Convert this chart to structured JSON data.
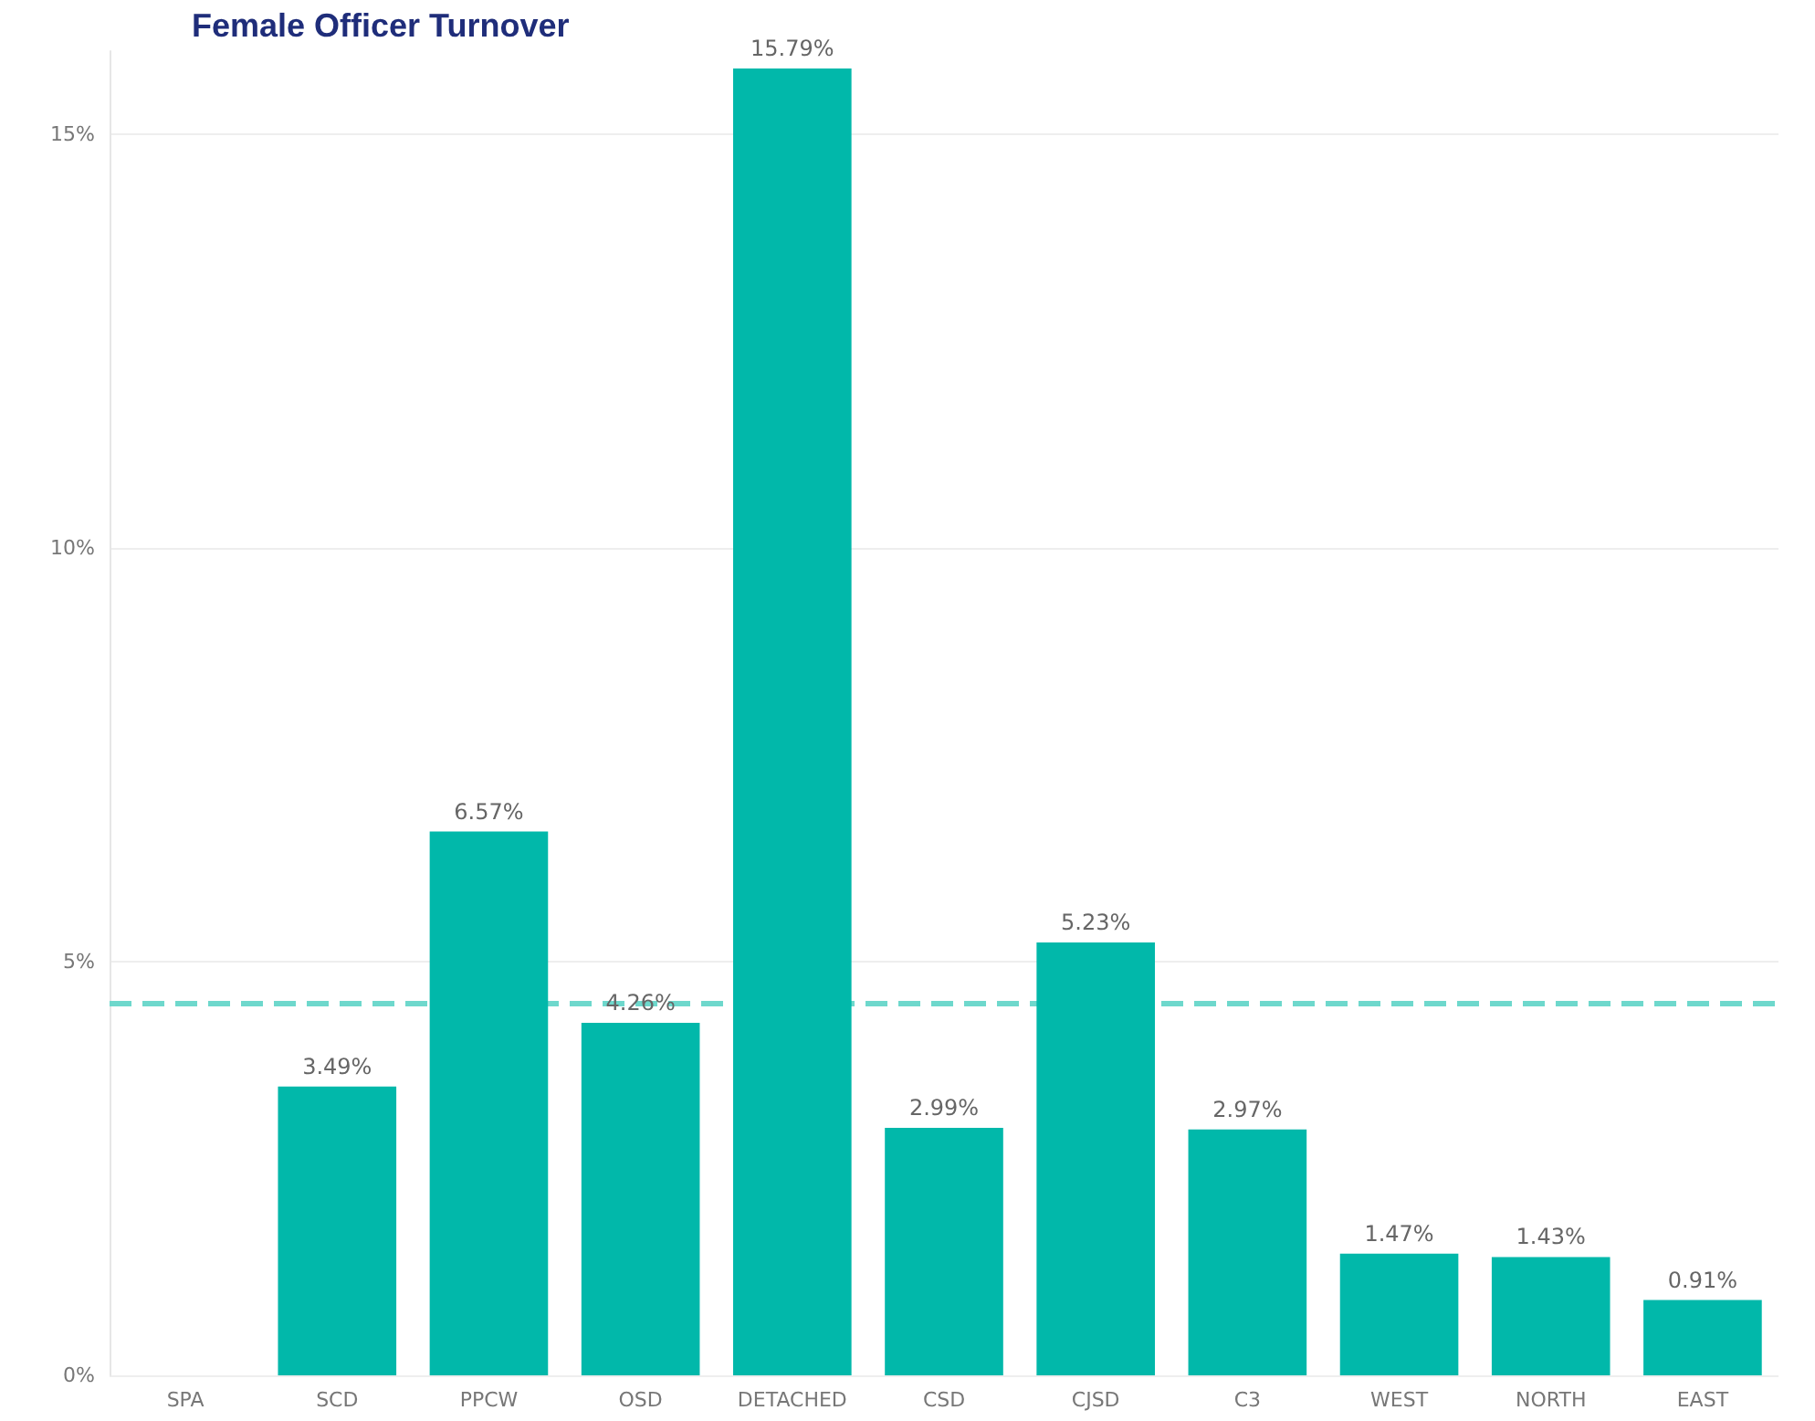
{
  "chart_data": {
    "type": "bar",
    "title": "Female Officer Turnover",
    "categories": [
      "SPA",
      "SCD",
      "PPCW",
      "OSD",
      "DETACHED",
      "CSD",
      "CJSD",
      "C3",
      "WEST",
      "NORTH",
      "EAST"
    ],
    "values": [
      null,
      3.49,
      6.57,
      4.26,
      15.79,
      2.99,
      5.23,
      2.97,
      1.47,
      1.43,
      0.91
    ],
    "color": "#01b8aa",
    "ylim": [
      0,
      16
    ],
    "yticks": [
      {
        "value": 0,
        "label": "0%"
      },
      {
        "value": 5,
        "label": "5%"
      },
      {
        "value": 10,
        "label": "10%"
      },
      {
        "value": 15,
        "label": "15%"
      }
    ],
    "grid": "y",
    "value_labels": [
      null,
      "3.49%",
      "6.57%",
      "4.26%",
      "15.79%",
      "2.99%",
      "5.23%",
      "2.97%",
      "1.47%",
      "1.43%",
      "0.91%"
    ],
    "ref_lines": [
      {
        "axis": "y",
        "value": 4.5,
        "label": null,
        "color": "#6ed8cc",
        "line_style": "dashed"
      }
    ]
  }
}
